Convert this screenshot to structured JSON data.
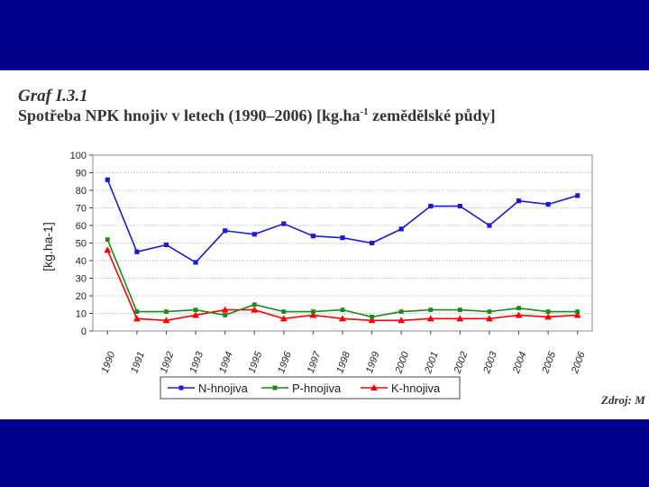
{
  "slide": {
    "figure_label": "Graf I.3.1",
    "title_main": "Spotřeba NPK hnojiv v letech (1990–2006) [kg.ha",
    "title_sup": "-1",
    "title_end": " zemědělské půdy]",
    "source": "Zdroj: M"
  },
  "colors": {
    "band": "#00008a",
    "n": "#1a1adb",
    "p": "#1a8a1a",
    "k": "#ff0000"
  },
  "chart_data": {
    "type": "line",
    "title": "Spotřeba NPK hnojiv v letech (1990–2006) [kg.ha-1 zemědělské půdy]",
    "xlabel": "",
    "ylabel": "[kg.ha-1]",
    "ylim": [
      0,
      100
    ],
    "yticks": [
      "0",
      "10",
      "20",
      "30",
      "40",
      "50",
      "60",
      "70",
      "80",
      "90",
      "100"
    ],
    "categories": [
      "1990",
      "1991",
      "1992",
      "1993",
      "1994",
      "1995",
      "1996",
      "1997",
      "1998",
      "1999",
      "2000",
      "2001",
      "2002",
      "2003",
      "2004",
      "2005",
      "2006"
    ],
    "series": [
      {
        "name": "N-hnojiva",
        "values": [
          86,
          45,
          49,
          39,
          57,
          55,
          61,
          54,
          53,
          50,
          58,
          71,
          71,
          60,
          74,
          72,
          77
        ]
      },
      {
        "name": "P-hnojiva",
        "values": [
          52,
          11,
          11,
          12,
          9,
          15,
          11,
          11,
          12,
          8,
          11,
          12,
          12,
          11,
          13,
          11,
          11
        ]
      },
      {
        "name": "K-hnojiva",
        "values": [
          46,
          7,
          6,
          9,
          12,
          12,
          7,
          9,
          7,
          6,
          6,
          7,
          7,
          7,
          9,
          8,
          9
        ]
      }
    ],
    "legend_position": "bottom-center"
  }
}
